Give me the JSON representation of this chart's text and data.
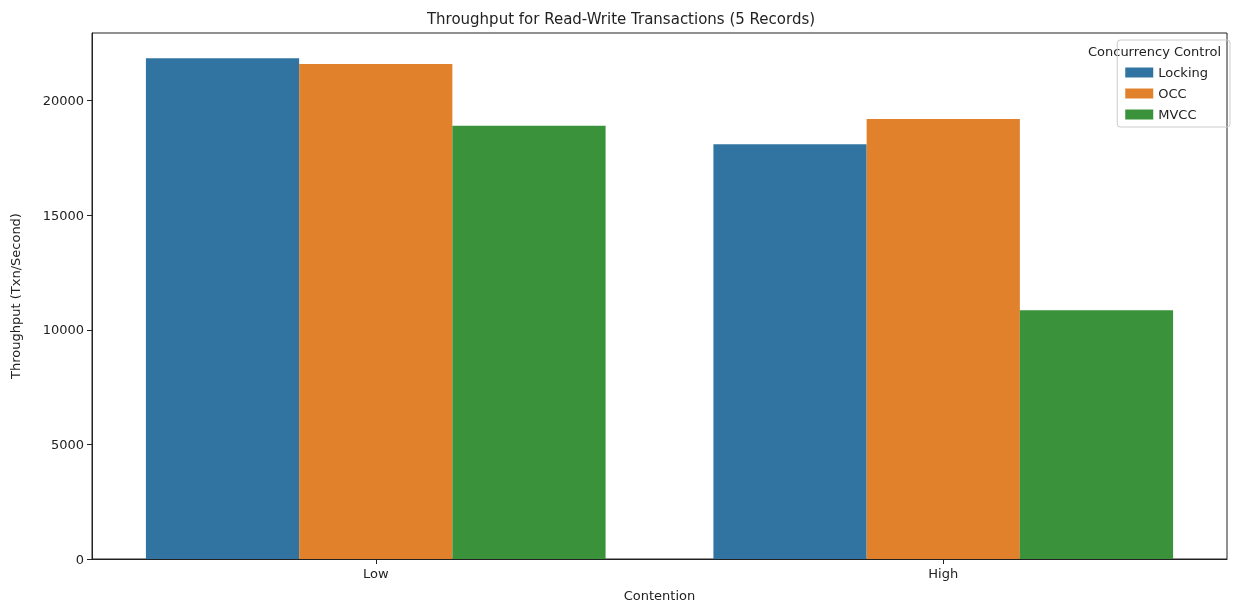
{
  "chart_data": {
    "type": "bar",
    "title": "Throughput for Read-Write Transactions (5 Records)",
    "xlabel": "Contention",
    "ylabel": "Throughput (Txn/Second)",
    "legend_title": "Concurrency Control",
    "legend": "top right",
    "grid": false,
    "categories": [
      "Low",
      "High"
    ],
    "series": [
      {
        "name": "Locking",
        "color": "#3274a1",
        "values": [
          21850,
          18100
        ]
      },
      {
        "name": "OCC",
        "color": "#e1812c",
        "values": [
          21600,
          19200
        ]
      },
      {
        "name": "MVCC",
        "color": "#3a923a",
        "values": [
          18900,
          10850
        ]
      }
    ],
    "ylim": [
      0,
      22950
    ],
    "yticks": [
      0,
      5000,
      10000,
      15000,
      20000
    ]
  }
}
